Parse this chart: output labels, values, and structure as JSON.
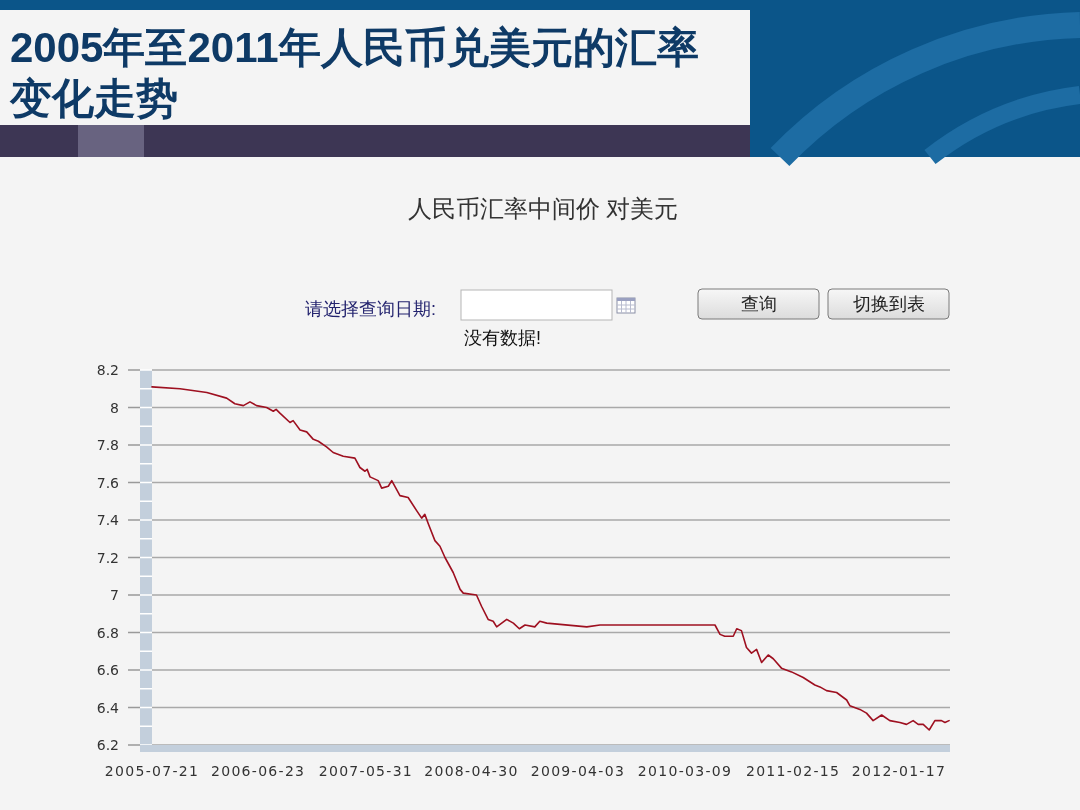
{
  "chart_data": {
    "type": "line",
    "title": "2005年至2011年人民币兑美元的汇率变化走势",
    "subtitle": "人民币汇率中间价 对美元",
    "annotations": [
      "请选择查询日期:",
      "没有数据!",
      "查询",
      "切换到表"
    ],
    "x": [
      "2005-07-21",
      "2005-10-18",
      "2006-01-11",
      "2006-03-15",
      "2006-04-10",
      "2006-05-07",
      "2006-05-28",
      "2006-06-18",
      "2006-07-20",
      "2006-08-10",
      "2006-08-19",
      "2006-08-31",
      "2006-10-02",
      "2006-10-12",
      "2006-11-03",
      "2006-11-24",
      "2006-12-15",
      "2006-12-31",
      "2007-01-26",
      "2007-02-16",
      "2007-03-20",
      "2007-04-26",
      "2007-05-12",
      "2007-05-28",
      "2007-06-04",
      "2007-06-13",
      "2007-07-09",
      "2007-07-20",
      "2007-08-10",
      "2007-08-21",
      "2007-09-16",
      "2007-10-12",
      "2007-11-08",
      "2007-11-24",
      "2007-12-04",
      "2007-12-15",
      "2008-01-05",
      "2008-01-21",
      "2008-02-06",
      "2008-03-03",
      "2008-03-25",
      "2008-04-04",
      "2008-05-16",
      "2008-06-01",
      "2008-06-22",
      "2008-07-08",
      "2008-07-19",
      "2008-08-20",
      "2008-09-10",
      "2008-09-29",
      "2008-10-17",
      "2008-11-17",
      "2008-12-03",
      "2008-12-25",
      "2009-05-01",
      "2009-06-12",
      "2010-01-09",
      "2010-06-12",
      "2010-06-28",
      "2010-07-13",
      "2010-08-09",
      "2010-08-20",
      "2010-09-04",
      "2010-09-20",
      "2010-10-06",
      "2010-10-22",
      "2010-11-07",
      "2010-11-28",
      "2010-12-14",
      "2011-01-09",
      "2011-02-10",
      "2011-03-19",
      "2011-04-25",
      "2011-05-11",
      "2011-06-01",
      "2011-07-03",
      "2011-08-04",
      "2011-08-14",
      "2011-09-15",
      "2011-10-06",
      "2011-10-27",
      "2011-11-23",
      "2011-12-19",
      "2012-01-20",
      "2012-02-10",
      "2012-03-02",
      "2012-03-18",
      "2012-04-03",
      "2012-04-22",
      "2012-05-10",
      "2012-05-31",
      "2012-06-11",
      "2012-06-24"
    ],
    "series": [
      {
        "color": "#9e1020",
        "values": [
          8.11,
          8.1,
          8.08,
          8.05,
          8.02,
          8.01,
          8.03,
          8.01,
          8.0,
          7.98,
          7.99,
          7.97,
          7.92,
          7.93,
          7.88,
          7.87,
          7.83,
          7.82,
          7.79,
          7.76,
          7.74,
          7.73,
          7.68,
          7.66,
          7.67,
          7.63,
          7.61,
          7.57,
          7.58,
          7.61,
          7.53,
          7.52,
          7.45,
          7.41,
          7.43,
          7.38,
          7.29,
          7.26,
          7.2,
          7.12,
          7.03,
          7.01,
          7.0,
          6.94,
          6.87,
          6.86,
          6.83,
          6.87,
          6.85,
          6.82,
          6.84,
          6.83,
          6.86,
          6.85,
          6.83,
          6.84,
          6.84,
          6.84,
          6.79,
          6.78,
          6.78,
          6.82,
          6.81,
          6.72,
          6.69,
          6.71,
          6.64,
          6.68,
          6.66,
          6.61,
          6.59,
          6.56,
          6.52,
          6.51,
          6.49,
          6.48,
          6.44,
          6.41,
          6.39,
          6.37,
          6.33,
          6.36,
          6.33,
          6.32,
          6.31,
          6.33,
          6.31,
          6.31,
          6.28,
          6.33,
          6.33,
          6.32,
          6.33
        ]
      }
    ],
    "xlim": [
      "2005-07-21",
      "2012-06-27"
    ],
    "xticks": [
      "2005-07-21",
      "2006-06-23",
      "2007-05-31",
      "2008-04-30",
      "2009-04-03",
      "2010-03-09",
      "2011-02-15",
      "2012-01-17"
    ],
    "ylim": [
      6.2,
      8.2
    ],
    "yticks": [
      6.2,
      6.4,
      6.6,
      6.8,
      7,
      7.2,
      7.4,
      7.6,
      7.8,
      8,
      8.2
    ],
    "grid": "y"
  }
}
